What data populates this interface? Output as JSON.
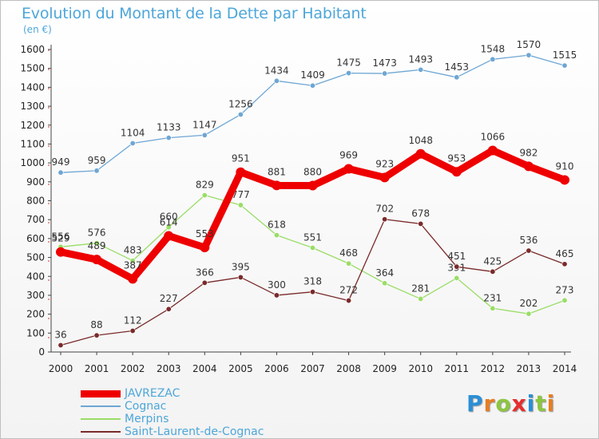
{
  "header": {
    "title": "Evolution du Montant de la Dette par Habitant",
    "unit": "(en €)"
  },
  "brand": {
    "text": "Proxiti",
    "letter_colors": [
      "#2b8fd6",
      "#e67e22",
      "#8cc63f",
      "#e62e2e",
      "#2b8fd6",
      "#8cc63f",
      "#e67e22"
    ]
  },
  "chart_data": {
    "type": "line",
    "title": "Evolution du Montant de la Dette par Habitant",
    "ylabel": "(en €)",
    "xlabel": "",
    "x": [
      "2000",
      "2001",
      "2002",
      "2003",
      "2004",
      "2005",
      "2006",
      "2007",
      "2008",
      "2009",
      "2010",
      "2011",
      "2012",
      "2013",
      "2014"
    ],
    "ylim": [
      0,
      1600
    ],
    "yticks": [
      0,
      100,
      200,
      300,
      400,
      500,
      600,
      700,
      800,
      900,
      1000,
      1100,
      1200,
      1300,
      1400,
      1500,
      1600
    ],
    "grid": false,
    "legend_position": "bottom-left",
    "series": [
      {
        "name": "JAVREZAC",
        "color": "#ee0000",
        "emphasis": true,
        "values": [
          529,
          489,
          387,
          614,
          553,
          951,
          881,
          880,
          969,
          923,
          1048,
          953,
          1066,
          982,
          910
        ]
      },
      {
        "name": "Cognac",
        "color": "#6ea6d4",
        "values": [
          949,
          959,
          1104,
          1133,
          1147,
          1256,
          1434,
          1409,
          1475,
          1473,
          1493,
          1453,
          1548,
          1570,
          1515
        ]
      },
      {
        "name": "Merpins",
        "color": "#99dd66",
        "values": [
          556,
          576,
          483,
          660,
          829,
          777,
          618,
          551,
          468,
          364,
          281,
          391,
          231,
          202,
          273
        ]
      },
      {
        "name": "Saint-Laurent-de-Cognac",
        "color": "#7a2a2a",
        "values": [
          36,
          88,
          112,
          227,
          366,
          395,
          300,
          318,
          272,
          702,
          678,
          451,
          425,
          536,
          465
        ]
      }
    ]
  }
}
